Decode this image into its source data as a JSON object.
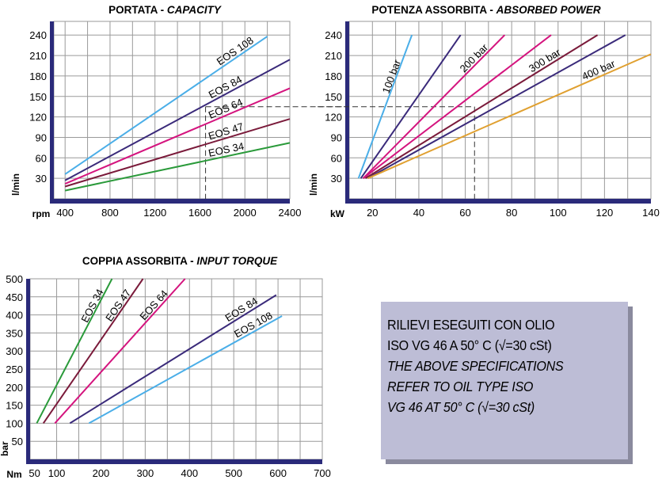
{
  "chart_data": [
    {
      "type": "line",
      "title": "PORTATA - ",
      "title_italic": "CAPACITY",
      "xlabel": "rpm",
      "ylabel": "l/min",
      "xlim": [
        300,
        2400
      ],
      "ylim": [
        0,
        260
      ],
      "x_ticks": [
        "400",
        "800",
        "1200",
        "1600",
        "2000",
        "2400"
      ],
      "y_ticks": [
        "30",
        "60",
        "90",
        "120",
        "150",
        "180",
        "210",
        "240"
      ],
      "grid": true,
      "series": [
        {
          "name": "EOS 108",
          "color": "#4aaee8",
          "x": [
            400,
            2200
          ],
          "y": [
            36,
            238
          ]
        },
        {
          "name": "EOS 84",
          "color": "#3a2a7a",
          "x": [
            400,
            2400
          ],
          "y": [
            27,
            204
          ]
        },
        {
          "name": "EOS 64",
          "color": "#d4147e",
          "x": [
            400,
            2400
          ],
          "y": [
            22,
            162
          ]
        },
        {
          "name": "EOS 47",
          "color": "#7a1a3a",
          "x": [
            400,
            2400
          ],
          "y": [
            18,
            117
          ]
        },
        {
          "name": "EOS 34",
          "color": "#2a9a3a",
          "x": [
            400,
            2400
          ],
          "y": [
            12,
            82
          ]
        }
      ],
      "guide": {
        "x": 1650,
        "y": 135
      }
    },
    {
      "type": "line",
      "title": "POTENZA ASSORBITA - ",
      "title_italic": "ABSORBED POWER",
      "xlabel": "kW",
      "ylabel": "l/min",
      "xlim": [
        10,
        140
      ],
      "ylim": [
        0,
        260
      ],
      "x_ticks": [
        "20",
        "40",
        "60",
        "80",
        "100",
        "120",
        "140"
      ],
      "y_ticks": [
        "30",
        "60",
        "90",
        "120",
        "150",
        "180",
        "210",
        "240"
      ],
      "grid": true,
      "series": [
        {
          "name": "100 bar",
          "color": "#4aaee8",
          "x": [
            14,
            37
          ],
          "y": [
            30,
            240
          ]
        },
        {
          "name": "",
          "color": "#3a2a7a",
          "x": [
            15,
            58
          ],
          "y": [
            30,
            240
          ]
        },
        {
          "name": "200 bar",
          "color": "#d4147e",
          "x": [
            16,
            77
          ],
          "y": [
            30,
            240
          ]
        },
        {
          "name": "",
          "color": "#d4147e",
          "x": [
            16,
            97
          ],
          "y": [
            30,
            240
          ]
        },
        {
          "name": "300 bar",
          "color": "#7a1a3a",
          "x": [
            17,
            117
          ],
          "y": [
            30,
            240
          ]
        },
        {
          "name": "",
          "color": "#3a2a7a",
          "x": [
            18,
            129
          ],
          "y": [
            30,
            240
          ]
        },
        {
          "name": "400 bar",
          "color": "#e0a030",
          "x": [
            18,
            140
          ],
          "y": [
            30,
            212
          ]
        }
      ],
      "guide": {
        "x": 64,
        "y": 135
      }
    },
    {
      "type": "line",
      "title": "COPPIA ASSORBITA - ",
      "title_italic": "INPUT TORQUE",
      "xlabel": "Nm",
      "ylabel": "bar",
      "xlim": [
        40,
        700
      ],
      "ylim": [
        0,
        500
      ],
      "x_ticks": [
        "50",
        "100",
        "200",
        "300",
        "400",
        "500",
        "600",
        "700"
      ],
      "y_ticks": [
        "50",
        "100",
        "150",
        "200",
        "250",
        "300",
        "350",
        "400",
        "450",
        "500"
      ],
      "grid": true,
      "series": [
        {
          "name": "EOS 34",
          "color": "#2a9a3a",
          "x": [
            55,
            225
          ],
          "y": [
            100,
            500
          ]
        },
        {
          "name": "EOS 47",
          "color": "#7a1a3a",
          "x": [
            70,
            295
          ],
          "y": [
            100,
            500
          ]
        },
        {
          "name": "EOS 64",
          "color": "#d4147e",
          "x": [
            96,
            390
          ],
          "y": [
            100,
            500
          ]
        },
        {
          "name": "EOS 84",
          "color": "#3a2a7a",
          "x": [
            130,
            596
          ],
          "y": [
            100,
            455
          ]
        },
        {
          "name": "EOS 108",
          "color": "#4aaee8",
          "x": [
            173,
            609
          ],
          "y": [
            100,
            397
          ]
        }
      ]
    }
  ],
  "note": {
    "line1": "RILIEVI ESEGUITI CON OLIO",
    "line2": "ISO VG 46 A 50° C (√=30 cSt)",
    "line3": "THE ABOVE SPECIFICATIONS",
    "line4": "REFER TO OIL TYPE ISO",
    "line5": "VG 46 AT 50° C (√=30 cSt)"
  }
}
